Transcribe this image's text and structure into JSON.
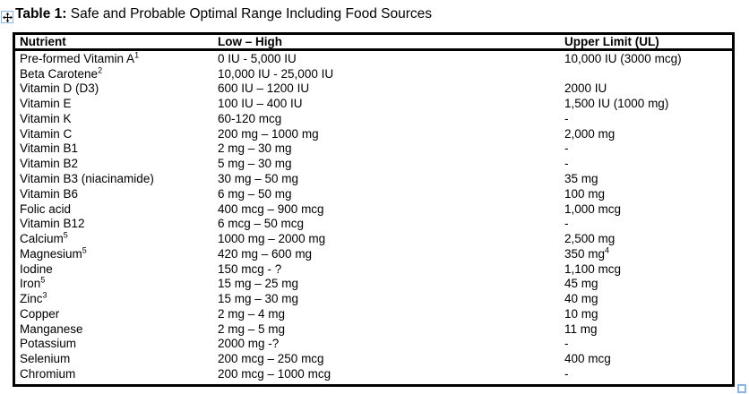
{
  "caption": {
    "label": "Table 1:",
    "text": " Safe and Probable Optimal Range Including Food Sources"
  },
  "icons": {
    "move_handle": "four-way-arrow",
    "resize_handle": "hollow-square"
  },
  "colors": {
    "text": "#000000",
    "table_border": "#000000",
    "squiggle_red": "#e00000",
    "handle_blue": "#8eb4e3"
  },
  "table": {
    "headers": [
      "Nutrient",
      "Low – High",
      "Upper Limit (UL)"
    ],
    "rows": [
      {
        "nutrient": "Pre-formed Vitamin A",
        "nutrient_sup": "1",
        "range": "0 IU - 5,000 IU",
        "upper": "10,000 IU (3000 mcg)"
      },
      {
        "nutrient": "Beta Carotene",
        "nutrient_sup": "2",
        "range": "10,000 IU - 25,000 IU",
        "upper": ""
      },
      {
        "nutrient": "Vitamin D (D3)",
        "range": "600 IU – 1200 IU",
        "upper": "2000 IU"
      },
      {
        "nutrient": "Vitamin E",
        "range": "100 IU – 400 IU",
        "upper": "1,500 IU (1000 mg)"
      },
      {
        "nutrient": "Vitamin K",
        "range": "60-120 ⟦mcg⟧",
        "upper": "-"
      },
      {
        "nutrient": "Vitamin C",
        "range": "200 mg – 1000 mg",
        "upper": "2,000 mg"
      },
      {
        "nutrient": "Vitamin B1",
        "range": "2 mg – 30 mg",
        "upper": "-"
      },
      {
        "nutrient": "Vitamin B2",
        "range": "5 mg – 30 mg",
        "upper": "-"
      },
      {
        "nutrient": "Vitamin B3 (⟦niacinamide⟧)",
        "range": "30 mg – 50 mg",
        "upper": "35 mg"
      },
      {
        "nutrient": "Vitamin B6",
        "range": "6 mg – 50 mg",
        "upper": "100 mg"
      },
      {
        "nutrient": "Folic acid",
        "range": "400 mcg – 900 mcg",
        "upper": "1,000 mcg"
      },
      {
        "nutrient": "Vitamin B12",
        "range": "6 mcg – 50 mcg",
        "upper": "-"
      },
      {
        "nutrient": "Calcium",
        "nutrient_sup": "5",
        "range": "1000 mg – 2000 mg",
        "upper": "2,500 mg"
      },
      {
        "nutrient": "Magnesium",
        "nutrient_sup": "5",
        "range": "420 mg – 600 mg",
        "upper": "350 mg",
        "upper_sup": "4"
      },
      {
        "nutrient": "Iodine",
        "range": "150 mcg - ?",
        "upper": "1,100 mcg"
      },
      {
        "nutrient": "Iron",
        "nutrient_sup": "5",
        "range": "15 mg – 25 mg",
        "upper": "45 mg"
      },
      {
        "nutrient": "Zinc",
        "nutrient_sup": "3",
        "range": "15 mg – 30 mg",
        "upper": "40 mg"
      },
      {
        "nutrient": "Copper",
        "range": "2 mg – 4 mg",
        "upper": "10 mg"
      },
      {
        "nutrient": "Manganese",
        "range": "2 mg – 5 mg",
        "upper": "11 mg"
      },
      {
        "nutrient": "Potassium",
        "range": "2000 mg -?",
        "upper": "-"
      },
      {
        "nutrient": "Selenium",
        "range": "200 mcg – 250 mcg",
        "upper": "400 mcg"
      },
      {
        "nutrient": "Chromium",
        "range": "200 mcg – 1000 mcg",
        "upper": "-"
      }
    ]
  }
}
